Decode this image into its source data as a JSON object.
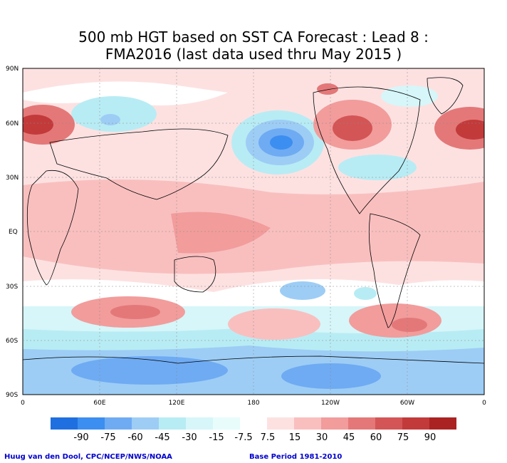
{
  "title": {
    "line1": "500 mb HGT based on SST CA Forecast : Lead 8 :",
    "line2": "FMA2016 (last data used thru May 2015 )"
  },
  "map": {
    "lat_labels": [
      "90N",
      "60N",
      "30N",
      "EQ",
      "30S",
      "60S",
      "90S"
    ],
    "lon_labels": [
      "0",
      "60E",
      "120E",
      "180",
      "120W",
      "60W",
      "0"
    ]
  },
  "colorbar": {
    "labels": [
      "-90",
      "-75",
      "-60",
      "-45",
      "-30",
      "-15",
      "-7.5",
      "7.5",
      "15",
      "30",
      "45",
      "60",
      "75",
      "90"
    ],
    "colors": [
      "#1f6fe0",
      "#3c8ef0",
      "#6fabf3",
      "#9dcdf5",
      "#b8ecf4",
      "#d6f6f9",
      "#e8fcfc",
      "#ffffff",
      "#fde1e1",
      "#f9bfbf",
      "#f29c9c",
      "#e47878",
      "#d45555",
      "#c33a3a",
      "#aa2222"
    ]
  },
  "credits": {
    "left": "Huug van den Dool, CPC/NCEP/NWS/NOAA",
    "right": "Base Period 1981-2010"
  }
}
